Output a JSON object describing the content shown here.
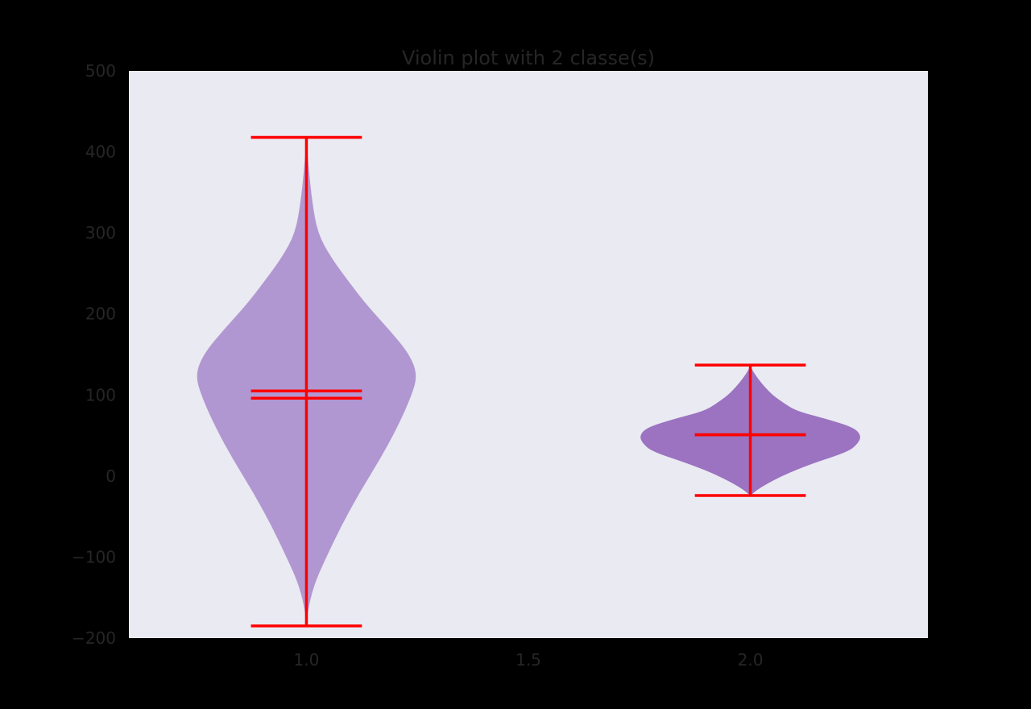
{
  "chart_data": {
    "type": "violin",
    "title": "Violin plot with 2 classe(s)",
    "xlabel": "",
    "ylabel": "",
    "xlim": [
      0.6,
      2.4
    ],
    "ylim": [
      -200,
      500
    ],
    "x_ticks": [
      1.0,
      1.5,
      2.0
    ],
    "x_tick_labels": [
      "1.0",
      "1.5",
      "2.0"
    ],
    "y_ticks": [
      -200,
      -100,
      0,
      100,
      200,
      300,
      400,
      500
    ],
    "y_tick_labels": [
      "−200",
      "−100",
      "0",
      "100",
      "200",
      "300",
      "400",
      "500"
    ],
    "grid": false,
    "colors": {
      "figure_background": "#000000",
      "plot_background": "#EAEAF2",
      "line_color": "#FF0000",
      "text_color": "#262626"
    },
    "violins": [
      {
        "position": 1.0,
        "color": "#B197D1",
        "min": -185,
        "max": 418,
        "mean": 105,
        "median": 96,
        "half_width_scale": 0.25,
        "density": [
          [
            -185,
            0.0
          ],
          [
            -160,
            0.02
          ],
          [
            -130,
            0.08
          ],
          [
            -100,
            0.18
          ],
          [
            -60,
            0.32
          ],
          [
            -20,
            0.48
          ],
          [
            20,
            0.66
          ],
          [
            60,
            0.82
          ],
          [
            100,
            0.95
          ],
          [
            125,
            1.0
          ],
          [
            150,
            0.93
          ],
          [
            180,
            0.75
          ],
          [
            210,
            0.55
          ],
          [
            240,
            0.38
          ],
          [
            270,
            0.22
          ],
          [
            300,
            0.1
          ],
          [
            340,
            0.05
          ],
          [
            380,
            0.02
          ],
          [
            418,
            0.0
          ]
        ]
      },
      {
        "position": 2.0,
        "color": "#9B73C1",
        "min": -24,
        "max": 137,
        "mean": 51,
        "median": 51,
        "half_width_scale": 0.25,
        "density": [
          [
            -24,
            0.0
          ],
          [
            -15,
            0.08
          ],
          [
            0,
            0.28
          ],
          [
            15,
            0.55
          ],
          [
            30,
            0.88
          ],
          [
            40,
            0.97
          ],
          [
            50,
            1.0
          ],
          [
            60,
            0.93
          ],
          [
            70,
            0.7
          ],
          [
            80,
            0.42
          ],
          [
            90,
            0.3
          ],
          [
            100,
            0.2
          ],
          [
            110,
            0.13
          ],
          [
            120,
            0.07
          ],
          [
            130,
            0.02
          ],
          [
            137,
            0.0
          ]
        ]
      }
    ]
  }
}
